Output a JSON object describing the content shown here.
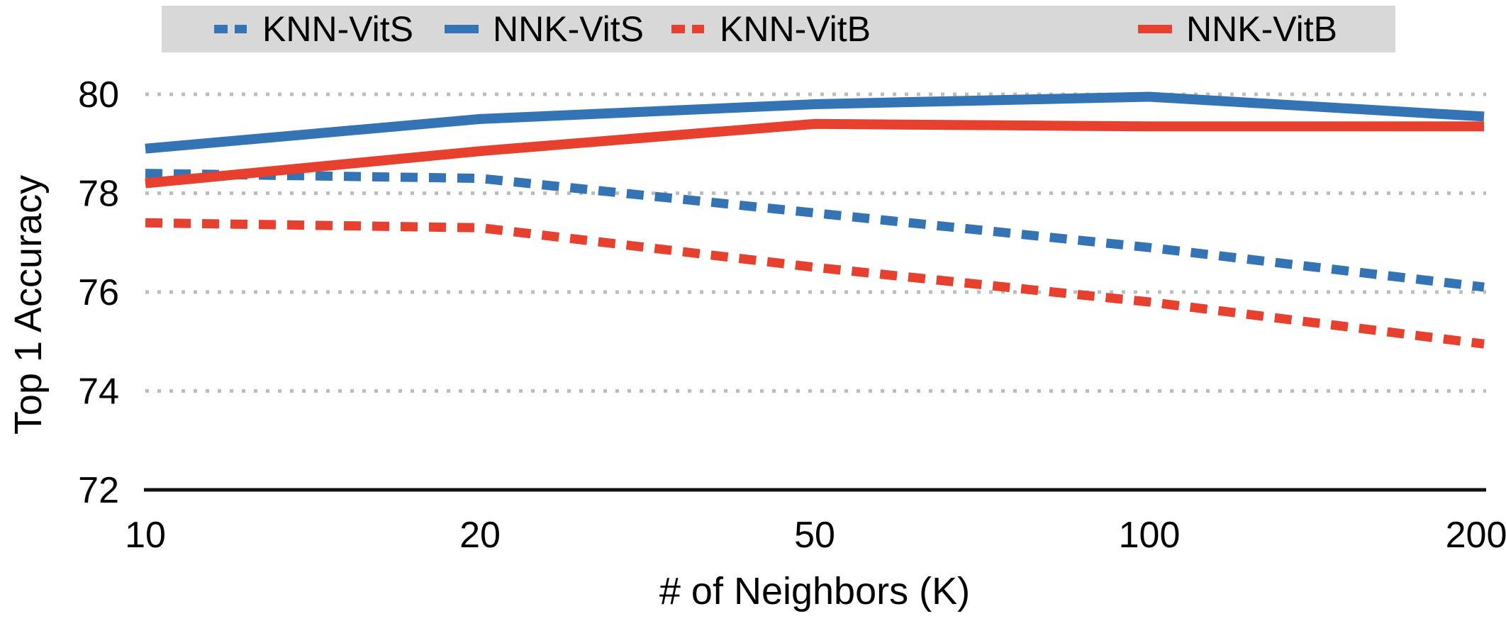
{
  "chart_data": {
    "type": "line",
    "title": "",
    "xlabel": "# of Neighbors (K)",
    "ylabel": "Top 1 Accuracy",
    "categories": [
      10,
      20,
      50,
      100,
      200
    ],
    "x_tick_labels": [
      "10",
      "20",
      "50",
      "100",
      "200"
    ],
    "y_ticks": [
      80,
      78,
      76,
      74,
      72
    ],
    "y_gridline_values": [
      80,
      78,
      76,
      74
    ],
    "ylim": [
      72,
      80.3
    ],
    "x_axis_type": "categorical-equally-spaced",
    "grid": "horizontal dotted",
    "legend_position": "top",
    "series": [
      {
        "name": "KNN-VitS",
        "color": "#3474B5",
        "style": "dashed",
        "values": [
          78.4,
          78.3,
          77.6,
          76.9,
          76.1
        ]
      },
      {
        "name": "NNK-VitS",
        "color": "#3474B5",
        "style": "solid",
        "values": [
          78.9,
          79.5,
          79.8,
          79.95,
          79.55
        ]
      },
      {
        "name": "KNN-VitB",
        "color": "#E8402E",
        "style": "dashed",
        "values": [
          77.4,
          77.3,
          76.5,
          75.8,
          74.95
        ]
      },
      {
        "name": "NNK-VitB",
        "color": "#E8402E",
        "style": "solid",
        "values": [
          78.2,
          78.85,
          79.4,
          79.35,
          79.35
        ]
      }
    ],
    "colors": {
      "blue": "#3474B5",
      "red": "#E8402E",
      "legend_background": "#D8D8D8",
      "gridline": "#BDBDBD",
      "axis_line": "#111111",
      "text": "#000000"
    }
  }
}
